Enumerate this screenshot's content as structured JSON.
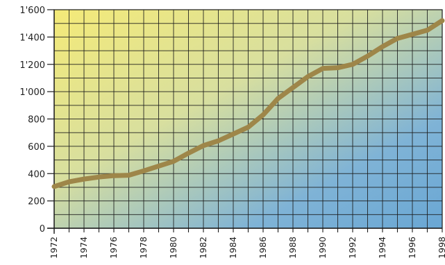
{
  "chart_data": {
    "type": "line",
    "title": "",
    "xlabel": "",
    "ylabel": "",
    "x": [
      1972,
      1973,
      1974,
      1975,
      1976,
      1977,
      1978,
      1979,
      1980,
      1981,
      1982,
      1983,
      1984,
      1985,
      1986,
      1987,
      1988,
      1989,
      1990,
      1991,
      1992,
      1993,
      1994,
      1995,
      1996,
      1997,
      1998
    ],
    "y": [
      305,
      340,
      360,
      375,
      385,
      388,
      420,
      455,
      490,
      550,
      605,
      640,
      690,
      740,
      830,
      950,
      1030,
      1110,
      1170,
      1175,
      1200,
      1260,
      1330,
      1390,
      1420,
      1450,
      1520
    ],
    "xlim": [
      1972,
      1998
    ],
    "ylim": [
      0,
      1600
    ],
    "y_ticks": [
      0,
      200,
      400,
      600,
      800,
      1000,
      1200,
      1400,
      1600
    ],
    "y_tick_labels": [
      "0",
      "200",
      "400",
      "600",
      "800",
      "1'000",
      "1'200",
      "1'400",
      "1'600"
    ],
    "x_ticks": [
      1972,
      1974,
      1976,
      1978,
      1980,
      1982,
      1984,
      1986,
      1988,
      1990,
      1992,
      1994,
      1996,
      1998
    ],
    "x_tick_labels": [
      "1972",
      "1974",
      "1976",
      "1978",
      "1980",
      "1982",
      "1984",
      "1986",
      "1988",
      "1990",
      "1992",
      "1994",
      "1996",
      "1998"
    ],
    "grid": true,
    "line_color": "#9e8649",
    "background_gradient": [
      "#f4ea78",
      "#d8df9f",
      "#7fb3d6",
      "#6aa7d4"
    ]
  }
}
